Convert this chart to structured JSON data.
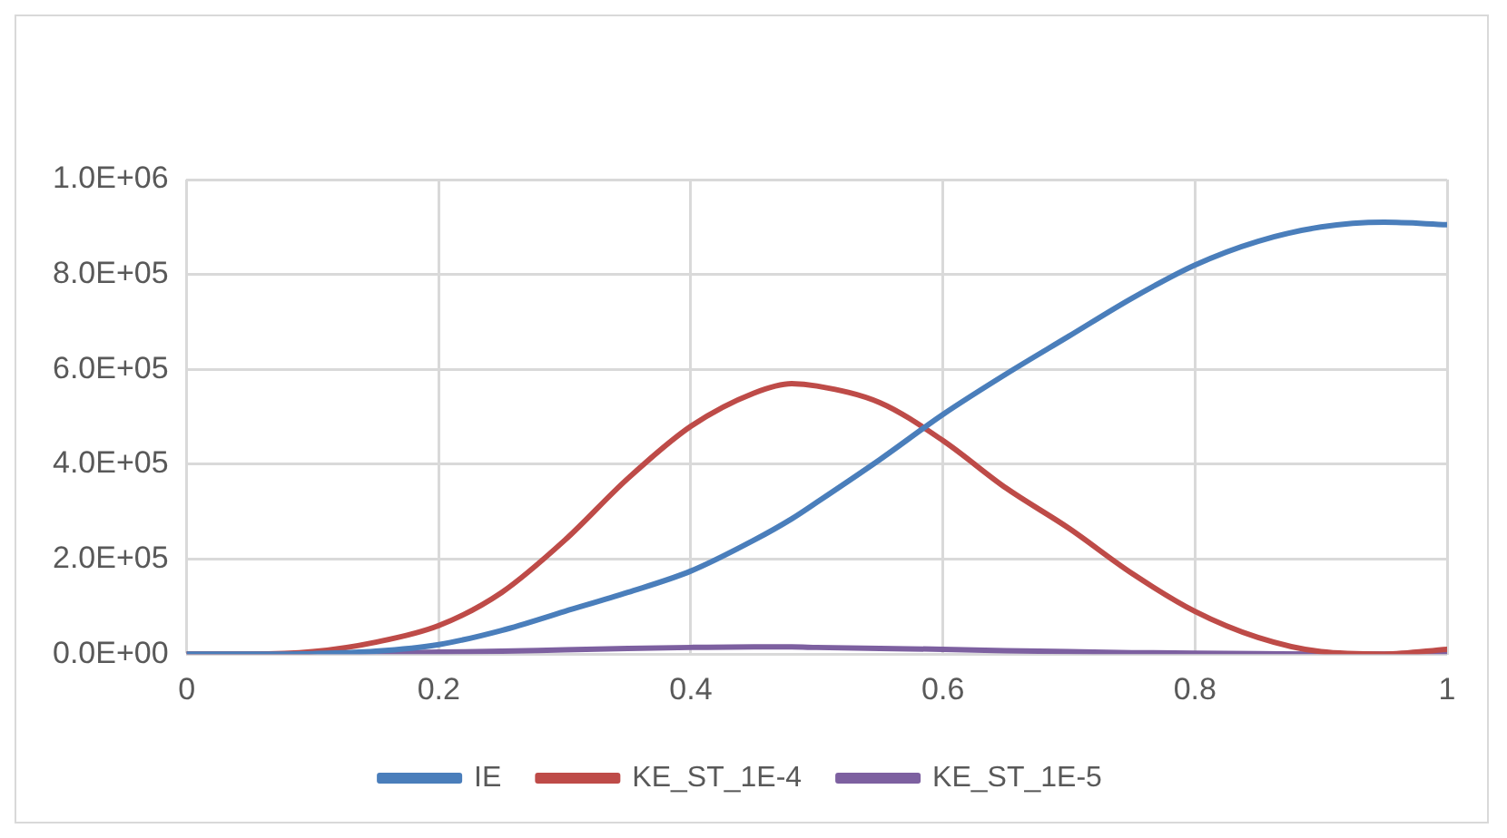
{
  "chart_data": {
    "type": "line",
    "x": [
      0,
      0.05,
      0.1,
      0.15,
      0.2,
      0.25,
      0.3,
      0.35,
      0.4,
      0.45,
      0.48,
      0.5,
      0.55,
      0.6,
      0.65,
      0.7,
      0.75,
      0.8,
      0.85,
      0.9,
      0.95,
      1
    ],
    "series": [
      {
        "name": "IE",
        "color": "#4a7ebb",
        "values": [
          0,
          0,
          1000,
          6000,
          20000,
          50000,
          90000,
          130000,
          175000,
          240000,
          285000,
          320000,
          410000,
          505000,
          590000,
          670000,
          750000,
          820000,
          870000,
          900000,
          910000,
          905000
        ]
      },
      {
        "name": "KE_ST_1E-4",
        "color": "#be4b48",
        "values": [
          0,
          0,
          5000,
          25000,
          60000,
          130000,
          240000,
          370000,
          480000,
          550000,
          570000,
          565000,
          530000,
          450000,
          350000,
          265000,
          170000,
          90000,
          35000,
          5000,
          0,
          10000
        ]
      },
      {
        "name": "KE_ST_1E-5",
        "color": "#7d60a0",
        "values": [
          0,
          0,
          1000,
          2000,
          4000,
          6000,
          9000,
          12000,
          14000,
          15000,
          15000,
          14000,
          12000,
          10000,
          7000,
          5000,
          3000,
          2000,
          1000,
          0,
          0,
          0
        ]
      }
    ],
    "xlim": [
      0,
      1
    ],
    "xticks": [
      0,
      {
        "value": 0.2,
        "label": "0.2"
      },
      {
        "value": 0.4,
        "label": "0.4"
      },
      {
        "value": 0.6,
        "label": "0.6"
      },
      {
        "value": 0.8,
        "label": "0.8"
      },
      1
    ],
    "ylim": [
      0,
      1000000
    ],
    "yticks": [
      {
        "value": 0,
        "label": "0.0E+00"
      },
      {
        "value": 200000,
        "label": "2.0E+05"
      },
      {
        "value": 400000,
        "label": "4.0E+05"
      },
      {
        "value": 600000,
        "label": "6.0E+05"
      },
      {
        "value": 800000,
        "label": "8.0E+05"
      },
      {
        "value": 1000000,
        "label": "1.0E+06"
      }
    ],
    "grid": true,
    "legend": "bottom",
    "marker": "none",
    "line_style": "solid"
  }
}
